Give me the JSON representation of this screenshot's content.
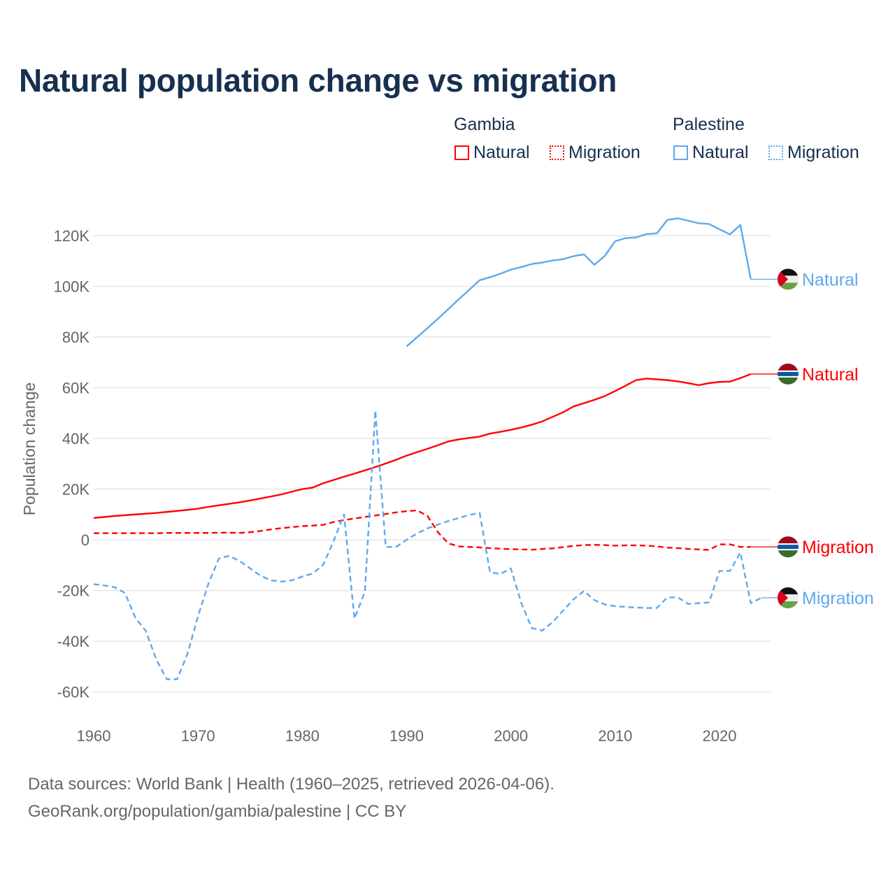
{
  "title": "Natural population change vs migration",
  "legend": {
    "groups": [
      {
        "name": "Gambia",
        "items": [
          "Natural",
          "Migration"
        ],
        "color": "#ff0000"
      },
      {
        "name": "Palestine",
        "items": [
          "Natural",
          "Migration"
        ],
        "color": "#5ea9ec"
      }
    ]
  },
  "footer": {
    "line1": "Data sources: World Bank | Health (1960–2025, retrieved 2026-04-06).",
    "line2": "GeoRank.org/population/gambia/palestine | CC BY"
  },
  "chart_data": {
    "type": "line",
    "title": "Natural population change vs migration",
    "xlabel": "",
    "ylabel": "Population change",
    "xlim": [
      1960,
      2025
    ],
    "ylim": [
      -70000,
      130000
    ],
    "yticks": [
      -60000,
      -40000,
      -20000,
      0,
      20000,
      40000,
      60000,
      80000,
      100000,
      120000
    ],
    "ytick_labels": [
      "-60K",
      "-40K",
      "-20K",
      "0",
      "20K",
      "40K",
      "60K",
      "80K",
      "100K",
      "120K"
    ],
    "xticks": [
      1960,
      1970,
      1980,
      1990,
      2000,
      2010,
      2020
    ],
    "xtick_labels": [
      "1960",
      "1970",
      "1980",
      "1990",
      "2000",
      "2010",
      "2020"
    ],
    "grid": true,
    "legend_position": "top-right",
    "series": [
      {
        "name": "Gambia Natural",
        "end_label": "Natural",
        "flag": "gambia",
        "color": "#ff0000",
        "dash": false,
        "start": 1960,
        "values": [
          8600,
          9000,
          9400,
          9700,
          10000,
          10300,
          10600,
          11000,
          11400,
          11800,
          12300,
          13000,
          13600,
          14200,
          14800,
          15500,
          16300,
          17100,
          17900,
          19000,
          20000,
          20600,
          22300,
          23600,
          24900,
          26100,
          27400,
          28700,
          30100,
          31600,
          33200,
          34600,
          35900,
          37300,
          38800,
          39600,
          40200,
          40700,
          41900,
          42600,
          43400,
          44300,
          45400,
          46700,
          48500,
          50300,
          52600,
          53900,
          55200,
          56700,
          58700,
          60800,
          63000,
          63600,
          63300,
          63000,
          62500,
          61800,
          61000,
          61800,
          62300,
          62400,
          63800,
          65400
        ]
      },
      {
        "name": "Gambia Migration",
        "end_label": "Migration",
        "flag": "gambia",
        "color": "#ff0000",
        "dash": true,
        "start": 1960,
        "values": [
          2600,
          2600,
          2600,
          2600,
          2600,
          2600,
          2600,
          2700,
          2700,
          2700,
          2700,
          2700,
          2800,
          2800,
          2700,
          3000,
          3500,
          4100,
          4600,
          5000,
          5400,
          5600,
          5900,
          7000,
          7800,
          8400,
          9000,
          9600,
          10200,
          10800,
          11300,
          11600,
          9400,
          3000,
          -1400,
          -2600,
          -2800,
          -3000,
          -3300,
          -3500,
          -3700,
          -3800,
          -3900,
          -3600,
          -3400,
          -2900,
          -2400,
          -2100,
          -2000,
          -2100,
          -2300,
          -2200,
          -2200,
          -2300,
          -2600,
          -3100,
          -3300,
          -3600,
          -3800,
          -4000,
          -1800,
          -1800,
          -2800,
          -2800
        ]
      },
      {
        "name": "Palestine Natural",
        "end_label": "Natural",
        "flag": "palestine",
        "color": "#5ea9ec",
        "dash": false,
        "start": 1990,
        "values": [
          76300,
          79900,
          83500,
          87200,
          91000,
          94900,
          98600,
          102400,
          103600,
          105000,
          106600,
          107600,
          108800,
          109400,
          110200,
          110700,
          111900,
          112600,
          108500,
          112000,
          117800,
          119000,
          119300,
          120600,
          120900,
          126200,
          126800,
          125900,
          124900,
          124600,
          122500,
          120500,
          124200,
          102800
        ]
      },
      {
        "name": "Palestine Migration",
        "end_label": "Migration",
        "flag": "palestine",
        "color": "#5ea9ec",
        "dash": true,
        "start": 1960,
        "values": [
          -17500,
          -18000,
          -18700,
          -21000,
          -30800,
          -36000,
          -47200,
          -55000,
          -55000,
          -44900,
          -30200,
          -17300,
          -7400,
          -6300,
          -8400,
          -11300,
          -14200,
          -16000,
          -16500,
          -16000,
          -14500,
          -13300,
          -9900,
          -500,
          10000,
          -31100,
          -20500,
          51000,
          -2800,
          -2800,
          0,
          2500,
          4500,
          6000,
          7400,
          8600,
          9800,
          10600,
          -12800,
          -13500,
          -11300,
          -25000,
          -34800,
          -35800,
          -32500,
          -28000,
          -23500,
          -20200,
          -23800,
          -25500,
          -26200,
          -26500,
          -26700,
          -26900,
          -26900,
          -22700,
          -22700,
          -25300,
          -25000,
          -24700,
          -12300,
          -12300,
          -5000,
          -25000,
          -22900
        ]
      }
    ]
  }
}
